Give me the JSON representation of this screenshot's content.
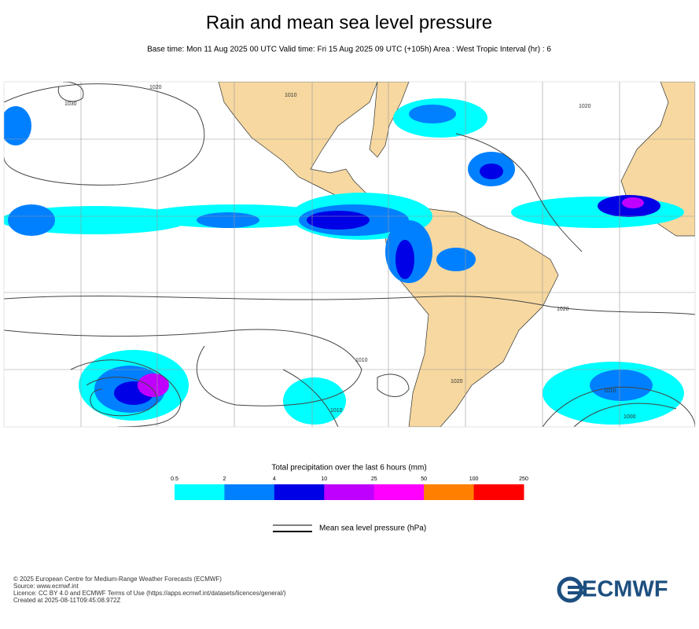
{
  "header": {
    "title": "Rain and mean sea level pressure",
    "subtitle": "Base time: Mon 11 Aug 2025 00 UTC Valid time: Fri 15 Aug 2025 09 UTC (+105h) Area : West Tropic Interval (hr) : 6"
  },
  "map": {
    "isobar_labels": [
      "1020",
      "1030",
      "1010",
      "1020",
      "1020",
      "1010",
      "1020",
      "1010",
      "1000",
      "1010"
    ]
  },
  "legend": {
    "title": "Total precipitation over the last 6 hours (mm)",
    "ticks": [
      0.5,
      2,
      4,
      10,
      25,
      50,
      100,
      250
    ],
    "colors": [
      "#00ffff",
      "#0080ff",
      "#0000e6",
      "#c000ff",
      "#ff00ff",
      "#ff8000",
      "#ff0000"
    ],
    "pressure_label": "Mean sea level pressure (hPa)"
  },
  "footer": {
    "lines": [
      "© 2025 European Centre for Medium-Range Weather Forecasts (ECMWF)",
      "Source: www.ecmwf.int",
      "Licence: CC BY 4.0 and ECMWF Terms of Use (https://apps.ecmwf.int/datasets/licences/general/)",
      "Created at 2025-08-11T09:45:08.972Z"
    ],
    "logo": "ECMWF"
  }
}
